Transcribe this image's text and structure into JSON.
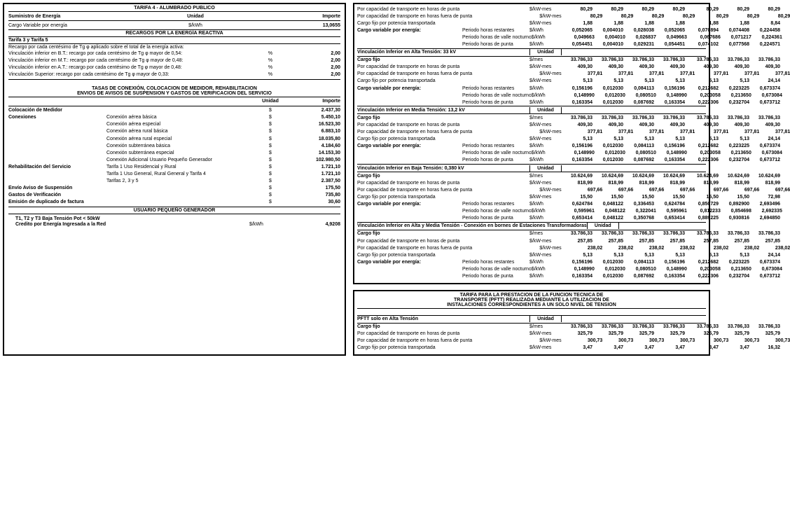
{
  "left": {
    "t4_title": "TARIFA 4 - ALUMBRADO PUBLICO",
    "sum": "Suministro de Energía",
    "unidad": "Unidad",
    "importe": "Importe",
    "cargo_var": "Cargo Variable por energía",
    "kwh": "$/kWh",
    "cv_val": "13,0655",
    "recargos": "RECARGOS POR LA ENERGÍA REACTIVA",
    "t3t5": "Tarifa 3 y Tarifa 5",
    "re_line": "Recargo por cada centésimo de Tg φ aplicado sobre el total de la energía activa:",
    "vinc": [
      {
        "l": "Vinculación inferior en B.T.: recargo por cada centésimo de Tg φ mayor de 0,54:",
        "u": "%",
        "v": "2,00"
      },
      {
        "l": "Vinculación inferior en M.T.: recargo por cada centésimo de Tg φ mayor de 0,48:",
        "u": "%",
        "v": "2,00"
      },
      {
        "l": "Vinculación inferior en A.T.: recargo por cada centésimo de Tg φ mayor de 0,48:",
        "u": "%",
        "v": "2,00"
      },
      {
        "l": "Vinculación Superior: recargo por cada centésimo de Tg φ mayor de 0,33:",
        "u": "%",
        "v": "2,00"
      }
    ],
    "tasas1": "TASAS DE CONEXIÓN, COLOCACION DE MEDIDOR, REHABILITACION",
    "tasas2": "ENVIOS DE AVISOS DE SUSPENSION Y GASTOS DE VERIFICACION DEL SERVICIO",
    "items": [
      {
        "a": "Colocación de Medidor",
        "b": "",
        "u": "$",
        "v": "2.437,30",
        "bold": true
      },
      {
        "a": "Conexiones",
        "b": "Conexión aérea básica",
        "u": "$",
        "v": "5.450,10",
        "bold": true
      },
      {
        "a": "",
        "b": "Conexión aérea especial",
        "u": "$",
        "v": "16.523,30"
      },
      {
        "a": "",
        "b": "Conexión aérea rural básica",
        "u": "$",
        "v": "6.883,10"
      },
      {
        "a": "",
        "b": "Conexión aérea rural especial",
        "u": "$",
        "v": "18.035,80"
      },
      {
        "a": "",
        "b": "Conexión subterránea básica",
        "u": "$",
        "v": "4.184,60"
      },
      {
        "a": "",
        "b": "Conexión subterránea especial",
        "u": "$",
        "v": "14.153,30"
      },
      {
        "a": "",
        "b": "Conexión Adicional Usuario Pequeño Generador",
        "u": "$",
        "v": "102.980,50"
      },
      {
        "a": "Rehabilitación del Servicio",
        "b": "Tarifa 1 Uso Residencial y Rural",
        "u": "$",
        "v": "1.721,10",
        "bold": true
      },
      {
        "a": "",
        "b": "Tarifa 1 Uso General, Rural General y Tarifa 4",
        "u": "$",
        "v": "1.721,10"
      },
      {
        "a": "",
        "b": "Tarifas 2, 3 y 5",
        "u": "$",
        "v": "2.387,50"
      },
      {
        "a": "Envío Aviso de Suspensión",
        "b": "",
        "u": "$",
        "v": "175,50",
        "bold": true
      },
      {
        "a": "Gastos de Verificación",
        "b": "",
        "u": "$",
        "v": "735,80",
        "bold": true
      },
      {
        "a": "Emisión de duplicado de factura",
        "b": "",
        "u": "$",
        "v": "30,60",
        "bold": true
      }
    ],
    "upg": "USUARIO PEQUEÑO GENERADOR",
    "upg_l1": "T1, T2 y T3 Baja Tensión Pot < 50kW",
    "upg_l2": "Credito por Energía Ingresada a la Red",
    "upg_u": "$/kWh",
    "upg_v": "4,9208"
  },
  "right_top": {
    "intro": [
      {
        "l": "Por capacidad de transporte en horas de punta",
        "u": "$/kW-mes",
        "v": [
          "80,29",
          "80,29",
          "80,29",
          "80,29",
          "",
          "80,29",
          "80,29",
          "80,29"
        ]
      },
      {
        "l": "Por capacidad de transporte en horas fuera de punta",
        "u": "$/kW-mes",
        "v": [
          "80,29",
          "80,29",
          "80,29",
          "80,29",
          "",
          "80,29",
          "80,29",
          "80,29"
        ]
      },
      {
        "l": "Cargo fijo por potencia transportada",
        "u": "$/kW-mes",
        "v": [
          "1,88",
          "1,88",
          "1,88",
          "1,88",
          "",
          "1,88",
          "1,88",
          "8,84"
        ]
      }
    ],
    "cvpe_intro": [
      {
        "l": "Cargo variable por energía:",
        "s": "Periodo horas restantes",
        "u": "$/kWh",
        "v": [
          "0,052065",
          "0,004010",
          "0,028038",
          "0,052065",
          "",
          "0,070894",
          "0,074408",
          "0,224458"
        ]
      },
      {
        "l": "",
        "s": "Periodo horas de valle nocturno",
        "u": "$/kWh",
        "v": [
          "0,049663",
          "0,004010",
          "0,026837",
          "0,049663",
          "",
          "0,067686",
          "0,071217",
          "0,224361"
        ]
      },
      {
        "l": "",
        "s": "Periodo horas de punta",
        "u": "$/kWh",
        "v": [
          "0,054451",
          "0,004010",
          "0,029231",
          "0,054451",
          "",
          "0,074102",
          "0,077568",
          "0,224571"
        ]
      }
    ],
    "sections": [
      {
        "title": "Vinculación Inferior en Alta Tensión: 33 kV",
        "rows": [
          {
            "l": "Cargo fijo",
            "u": "$/mes",
            "v": [
              "33.786,33",
              "33.786,33",
              "33.786,33",
              "33.786,33",
              "",
              "33.786,33",
              "33.786,33",
              "33.786,33"
            ]
          },
          {
            "l": "Por capacidad de transporte en horas de punta",
            "u": "$/kW-mes",
            "v": [
              "409,30",
              "409,30",
              "409,30",
              "409,30",
              "",
              "409,30",
              "409,30",
              "409,30"
            ]
          },
          {
            "l": "Por capacidad de transporte en horas fuera de punta",
            "u": "$/kW-mes",
            "v": [
              "377,81",
              "377,81",
              "377,81",
              "377,81",
              "",
              "377,81",
              "377,81",
              "377,81"
            ]
          },
          {
            "l": "Cargo fijo por potencia transportada",
            "u": "$/kW-mes",
            "v": [
              "5,13",
              "5,13",
              "5,13",
              "5,13",
              "",
              "5,13",
              "5,13",
              "24,14"
            ]
          }
        ],
        "cvpe": [
          {
            "s": "Periodo horas restantes",
            "u": "$/kWh",
            "v": [
              "0,156196",
              "0,012030",
              "0,084113",
              "0,156196",
              "",
              "0,212682",
              "0,223225",
              "0,673374"
            ]
          },
          {
            "s": "Periodo horas de valle nocturno",
            "u": "$/kWh",
            "v": [
              "0,148990",
              "0,012030",
              "0,080510",
              "0,148990",
              "",
              "0,203058",
              "0,213650",
              "0,673084"
            ]
          },
          {
            "s": "Periodo horas de punta",
            "u": "$/kWh",
            "v": [
              "0,163354",
              "0,012030",
              "0,087692",
              "0,163354",
              "",
              "0,222306",
              "0,232704",
              "0,673712"
            ]
          }
        ]
      },
      {
        "title": "Vinculación Inferior en Media Tensión: 13,2 kV",
        "rows": [
          {
            "l": "Cargo fijo",
            "u": "$/mes",
            "v": [
              "33.786,33",
              "33.786,33",
              "33.786,33",
              "33.786,33",
              "",
              "33.786,33",
              "33.786,33",
              "33.786,33"
            ]
          },
          {
            "l": "Por capacidad de transporte en horas de punta",
            "u": "$/kW-mes",
            "v": [
              "409,30",
              "409,30",
              "409,30",
              "409,30",
              "",
              "409,30",
              "409,30",
              "409,30"
            ]
          },
          {
            "l": "Por capacidad de transporte en horas fuera de punta",
            "u": "$/kW-mes",
            "v": [
              "377,81",
              "377,81",
              "377,81",
              "377,81",
              "",
              "377,81",
              "377,81",
              "377,81"
            ]
          },
          {
            "l": "Cargo fijo por potencia transportada",
            "u": "$/kW-mes",
            "v": [
              "5,13",
              "5,13",
              "5,13",
              "5,13",
              "",
              "5,13",
              "5,13",
              "24,14"
            ]
          }
        ],
        "cvpe": [
          {
            "s": "Periodo horas restantes",
            "u": "$/kWh",
            "v": [
              "0,156196",
              "0,012030",
              "0,084113",
              "0,156196",
              "",
              "0,212682",
              "0,223225",
              "0,673374"
            ]
          },
          {
            "s": "Periodo horas de valle nocturno",
            "u": "$/kWh",
            "v": [
              "0,148990",
              "0,012030",
              "0,080510",
              "0,148990",
              "",
              "0,203058",
              "0,213650",
              "0,673084"
            ]
          },
          {
            "s": "Periodo horas de punta",
            "u": "$/kWh",
            "v": [
              "0,163354",
              "0,012030",
              "0,087692",
              "0,163354",
              "",
              "0,222306",
              "0,232704",
              "0,673712"
            ]
          }
        ]
      },
      {
        "title": "Vinculación Inferior en Baja Tensión: 0,380 kV",
        "rows": [
          {
            "l": "Cargo fijo",
            "u": "$/mes",
            "v": [
              "10.624,69",
              "10.624,69",
              "10.624,69",
              "10.624,69",
              "",
              "10.624,69",
              "10.624,69",
              "10.624,69"
            ]
          },
          {
            "l": "Por capacidad de transporte en horas de punta",
            "u": "$/kW-mes",
            "v": [
              "818,99",
              "818,99",
              "818,99",
              "818,99",
              "",
              "818,99",
              "818,99",
              "818,99"
            ]
          },
          {
            "l": "Por capacidad de transporte en horas fuera de punta",
            "u": "$/kW-mes",
            "v": [
              "697,66",
              "697,66",
              "697,66",
              "697,66",
              "",
              "697,66",
              "697,66",
              "697,66"
            ]
          },
          {
            "l": "Cargo fijo por potencia transportada",
            "u": "$/kW-mes",
            "v": [
              "15,50",
              "15,50",
              "15,50",
              "15,50",
              "",
              "15,50",
              "15,50",
              "72,98"
            ]
          }
        ],
        "cvpe": [
          {
            "s": "Periodo horas restantes",
            "u": "$/kWh",
            "v": [
              "0,624784",
              "0,048122",
              "0,336453",
              "0,624784",
              "",
              "0,850729",
              "0,892900",
              "2,693496"
            ]
          },
          {
            "s": "Periodo horas de valle nocturno",
            "u": "$/kWh",
            "v": [
              "0,595961",
              "0,048122",
              "0,322041",
              "0,595961",
              "",
              "0,812233",
              "0,854698",
              "2,692335"
            ]
          },
          {
            "s": "Periodo horas de punta",
            "u": "$/kWh",
            "v": [
              "0,653414",
              "0,048122",
              "0,350768",
              "0,653414",
              "",
              "0,889225",
              "0,930816",
              "2,694850"
            ]
          }
        ]
      },
      {
        "title": "Vinculación Inferior en Alta y Media Tensión - Conexión en bornes de Estaciones Transformadoras",
        "rows": [
          {
            "l": "Cargo fijo",
            "u": "$/mes",
            "v": [
              "33.786,33",
              "33.786,33",
              "33.786,33",
              "33.786,33",
              "",
              "33.786,33",
              "33.786,33",
              "33.786,33"
            ]
          },
          {
            "l": "Por capacidad de transporte en horas de punta",
            "u": "$/kW-mes",
            "v": [
              "257,85",
              "257,85",
              "257,85",
              "257,85",
              "",
              "257,85",
              "257,85",
              "257,85"
            ]
          },
          {
            "l": "Por capacidad de transporte en horas fuera de punta",
            "u": "$/kW-mes",
            "v": [
              "238,02",
              "238,02",
              "238,02",
              "238,02",
              "",
              "238,02",
              "238,02",
              "238,02"
            ]
          },
          {
            "l": "Cargo fijo por potencia transportada",
            "u": "$/kW-mes",
            "v": [
              "5,13",
              "5,13",
              "5,13",
              "5,13",
              "",
              "5,13",
              "5,13",
              "24,14"
            ]
          }
        ],
        "cvpe": [
          {
            "s": "Periodo horas restantes",
            "u": "$/kWh",
            "v": [
              "0,156196",
              "0,012030",
              "0,084113",
              "0,156196",
              "",
              "0,212682",
              "0,223225",
              "0,673374"
            ]
          },
          {
            "s": "Periodo horas de valle nocturno",
            "u": "$/kWh",
            "v": [
              "0,148990",
              "0,012030",
              "0,080510",
              "0,148990",
              "",
              "0,203058",
              "0,213650",
              "0,673084"
            ]
          },
          {
            "s": "Periodo horas de punta",
            "u": "$/kWh",
            "v": [
              "0,163354",
              "0,012030",
              "0,087692",
              "0,163354",
              "",
              "0,222306",
              "0,232704",
              "0,673712"
            ]
          }
        ]
      }
    ]
  },
  "right_bot": {
    "title1": "TARIFA PARA LA PRESTACION DE LA FUNCION TECNICA DE",
    "title2": "TRANSPORTE (PFTT) REALIZADA MEDIANTE LA UTILIZACION DE",
    "title3": "INSTALACIONES CORRESPONDIENTES A UN SOLO NIVEL DE TENSION",
    "sec": "PFTT solo en Alta Tensión",
    "rows": [
      {
        "l": "Cargo fijo",
        "u": "$/mes",
        "v": [
          "33.786,33",
          "33.786,33",
          "33.786,33",
          "33.786,33",
          "",
          "33.786,33",
          "33.786,33",
          "33.786,33"
        ]
      },
      {
        "l": "Por capacidad de transporte en horas de punta",
        "u": "$/kW-mes",
        "v": [
          "325,79",
          "325,79",
          "325,79",
          "325,79",
          "",
          "325,79",
          "325,79",
          "325,79"
        ]
      },
      {
        "l": "Por capacidad de transporte en horas fuera de punta",
        "u": "$/kW-mes",
        "v": [
          "300,73",
          "300,73",
          "300,73",
          "300,73",
          "",
          "300,73",
          "300,73",
          "300,73"
        ]
      },
      {
        "l": "Cargo fijo por potencia transportada",
        "u": "$/kW-mes",
        "v": [
          "3,47",
          "3,47",
          "3,47",
          "3,47",
          "",
          "3,47",
          "3,47",
          "16,32"
        ]
      }
    ]
  },
  "unidad": "Unidad",
  "cvpe_label": "Cargo variable por energía:"
}
